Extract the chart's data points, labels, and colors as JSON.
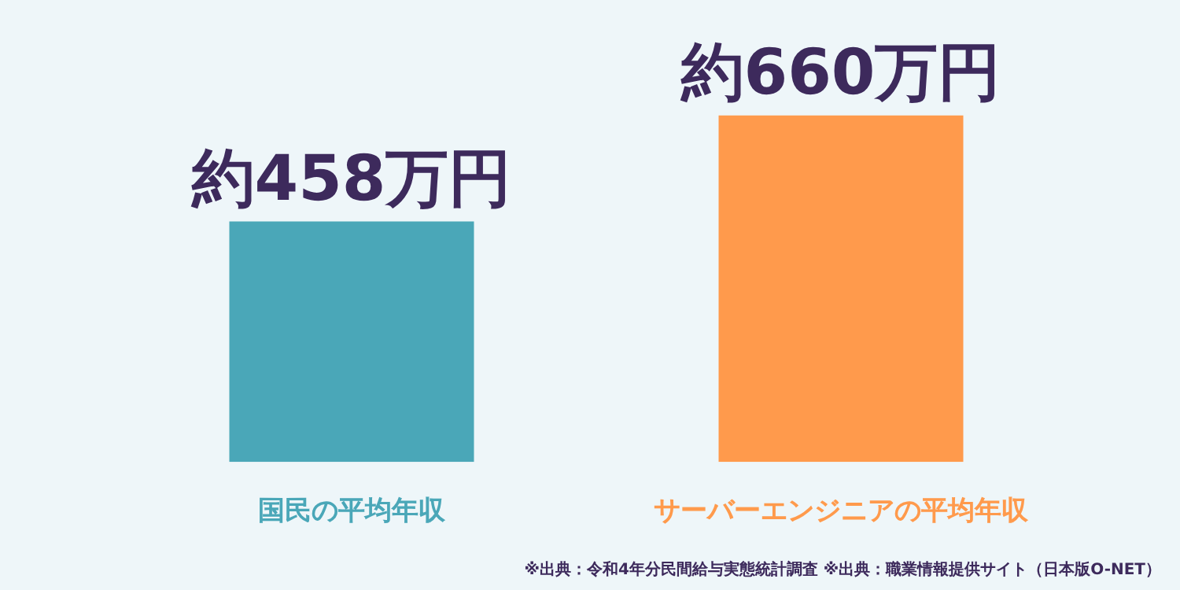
{
  "chart_data": {
    "type": "bar",
    "categories": [
      "国民の平均年収",
      "サーバーエンジニアの平均年収"
    ],
    "values": [
      458,
      660
    ],
    "colors": [
      "#4aa7b8",
      "#ff9a4c"
    ],
    "value_labels": [
      "約458万円",
      "約660万円"
    ],
    "relative": false,
    "annotations": [
      "※出典：令和4年分民間給与実態統計調査 ※出典：職業情報提供サイト（日本版O-NET）"
    ]
  }
}
